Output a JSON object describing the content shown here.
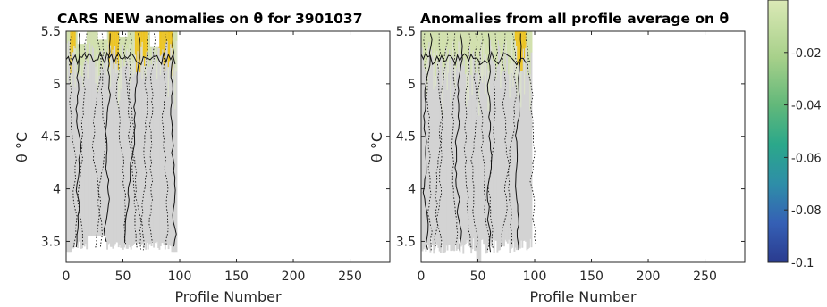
{
  "chart_data": [
    {
      "type": "heatmap",
      "title": "CARS NEW anomalies on θ for 3901037",
      "xlabel": "Profile Number",
      "ylabel": "θ °C",
      "xlim": [
        0,
        285
      ],
      "ylim": [
        3.3,
        5.5
      ],
      "xticks": [
        "0",
        "50",
        "100",
        "150",
        "200",
        "250"
      ],
      "yticks": [
        "3.5",
        "4",
        "4.5",
        "5",
        "5.5"
      ],
      "data_extent_profiles": [
        0,
        97
      ],
      "colors": {
        "background_fill": "#d3d3d3",
        "warm": "#f2c200",
        "light": "#d2e2a8"
      }
    },
    {
      "type": "heatmap",
      "title": "Anomalies from all profile average on θ",
      "xlabel": "Profile Number",
      "ylabel": "θ °C",
      "xlim": [
        0,
        285
      ],
      "ylim": [
        3.3,
        5.5
      ],
      "xticks": [
        "0",
        "50",
        "100",
        "150",
        "200",
        "250"
      ],
      "yticks": [
        "3.5",
        "4",
        "4.5",
        "5",
        "5.5"
      ],
      "data_extent_profiles": [
        0,
        97
      ],
      "colors": {
        "background_fill": "#d3d3d3",
        "warm": "#f2c200",
        "light": "#d2e2a8"
      }
    }
  ],
  "colorbar": {
    "ticks": [
      "-0.02",
      "-0.04",
      "-0.06",
      "-0.08",
      "-0.1"
    ],
    "tick_values": [
      -0.02,
      -0.04,
      -0.06,
      -0.08,
      -0.1
    ],
    "range": [
      -0.1,
      0.0
    ]
  }
}
